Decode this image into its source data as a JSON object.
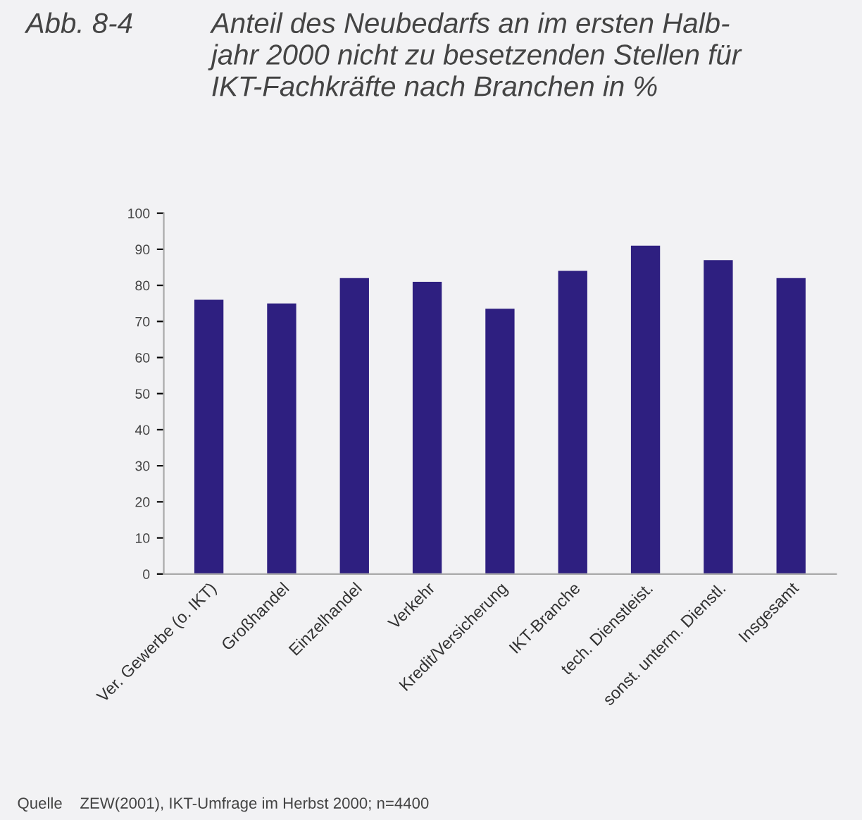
{
  "chart_data": {
    "type": "bar",
    "title": "Anteil des Neubedarfs an im ersten Halb-\njahr 2000 nicht zu besetzenden Stellen für\nIKT-Fachkräfte nach Branchen in %",
    "annotations": [
      "Abb. 8-4",
      "Quelle    ZEW(2001), IKT-Umfrage im Herbst 2000; n=4400"
    ],
    "categories": [
      "Ver. Gewerbe (o. IKT)",
      "Großhandel",
      "Einzelhandel",
      "Verkehr",
      "Kredit/Versicherung",
      "IKT-Branche",
      "tech. Dienstleist.",
      "sonst. unterm. Dienstl.",
      "Insgesamt"
    ],
    "values": [
      76,
      75,
      82,
      81,
      73.5,
      84,
      91,
      87,
      82
    ],
    "color": "#2e1f80",
    "ylim": [
      0,
      100
    ],
    "yticks": [
      0,
      10,
      20,
      30,
      40,
      50,
      60,
      70,
      80,
      90,
      100
    ],
    "grid": false
  }
}
